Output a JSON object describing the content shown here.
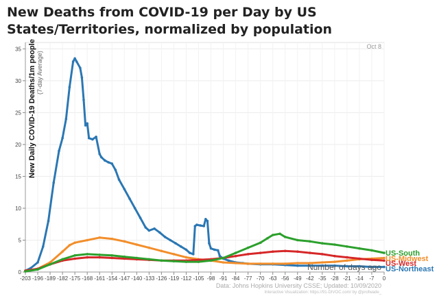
{
  "chart_data": {
    "type": "line",
    "title": "New Deaths from COVID-19 per Day by US States/Territories, normalized by population",
    "ylabel": "New Daily COVID-19 Deaths/1m people",
    "ylabel_sub": "(7-day Average)",
    "xlabel": "Number of days ago",
    "corner_label": "Oct 8",
    "source_line": "Data: Johns Hopkins University CSSE; Updated: 10/09/2020",
    "credit_line": "Interactive Visualization: https://91-DIVOC.com/ by @profwade_",
    "xlim": [
      -203,
      0
    ],
    "ylim": [
      0,
      36
    ],
    "x_ticks": [
      -203,
      -196,
      -189,
      -182,
      -175,
      -168,
      -161,
      -154,
      -147,
      -140,
      -133,
      -126,
      -119,
      -112,
      -105,
      -98,
      -91,
      -84,
      -77,
      -70,
      -63,
      -56,
      -49,
      -42,
      -35,
      -28,
      -21,
      -14,
      -7,
      0
    ],
    "y_ticks": [
      0,
      5,
      10,
      15,
      20,
      25,
      30,
      35
    ],
    "grid": true,
    "legend": "end-of-line labels, right",
    "series": [
      {
        "name": "US-Northeast",
        "color": "#2b77b3",
        "x": [
          -203,
          -200,
          -196,
          -193,
          -190,
          -187,
          -184,
          -182,
          -180,
          -178,
          -176,
          -175,
          -174,
          -172,
          -171,
          -170,
          -169,
          -168,
          -167,
          -165,
          -163,
          -161,
          -160,
          -158,
          -156,
          -154,
          -152,
          -150,
          -147,
          -144,
          -141,
          -138,
          -135,
          -133,
          -130,
          -127,
          -124,
          -121,
          -118,
          -115,
          -112,
          -110,
          -108,
          -107,
          -106,
          -104,
          -102,
          -101,
          -100,
          -99,
          -98,
          -96,
          -94,
          -93,
          -91,
          -88,
          -84,
          -80,
          -77,
          -70,
          -63,
          -56,
          -49,
          -42,
          -35,
          -28,
          -21,
          -14,
          -7,
          0
        ],
        "values": [
          0.2,
          0.6,
          1.5,
          4.0,
          8.0,
          14.0,
          19.0,
          21.0,
          24.0,
          29.0,
          33.0,
          33.5,
          33.0,
          32.0,
          30.5,
          27.0,
          23.0,
          23.3,
          21.0,
          20.8,
          21.2,
          18.5,
          18.0,
          17.5,
          17.2,
          17.0,
          16.0,
          14.5,
          13.0,
          11.5,
          10.0,
          8.5,
          7.0,
          6.5,
          6.8,
          6.2,
          5.5,
          5.0,
          4.5,
          4.0,
          3.5,
          3.0,
          2.8,
          7.2,
          7.4,
          7.3,
          7.2,
          8.3,
          8.0,
          4.5,
          3.7,
          3.5,
          3.4,
          2.5,
          2.1,
          1.8,
          1.5,
          1.4,
          1.3,
          1.2,
          1.2,
          1.1,
          1.0,
          1.0,
          1.0,
          1.0,
          0.9,
          0.9,
          0.8,
          0.8
        ]
      },
      {
        "name": "US-Midwest",
        "color": "#f28e2b",
        "x": [
          -203,
          -196,
          -189,
          -182,
          -178,
          -175,
          -168,
          -161,
          -154,
          -147,
          -140,
          -133,
          -126,
          -119,
          -112,
          -105,
          -98,
          -91,
          -84,
          -77,
          -70,
          -63,
          -56,
          -49,
          -42,
          -35,
          -28,
          -21,
          -14,
          -7,
          0
        ],
        "values": [
          0.2,
          0.5,
          1.5,
          3.2,
          4.2,
          4.6,
          5.0,
          5.4,
          5.2,
          4.8,
          4.3,
          3.8,
          3.3,
          2.8,
          2.3,
          2.0,
          1.8,
          1.5,
          1.4,
          1.3,
          1.3,
          1.3,
          1.3,
          1.4,
          1.4,
          1.5,
          1.6,
          1.8,
          2.0,
          2.1,
          2.2
        ]
      },
      {
        "name": "US-South",
        "color": "#2ca02c",
        "x": [
          -203,
          -196,
          -189,
          -182,
          -175,
          -168,
          -161,
          -154,
          -147,
          -140,
          -133,
          -126,
          -119,
          -112,
          -105,
          -98,
          -91,
          -84,
          -77,
          -70,
          -66,
          -63,
          -59,
          -56,
          -49,
          -42,
          -35,
          -28,
          -21,
          -14,
          -7,
          0
        ],
        "values": [
          0.1,
          0.4,
          1.2,
          2.0,
          2.6,
          2.8,
          2.7,
          2.6,
          2.4,
          2.2,
          2.0,
          1.8,
          1.7,
          1.6,
          1.6,
          1.8,
          2.2,
          3.0,
          3.8,
          4.6,
          5.3,
          5.8,
          6.0,
          5.5,
          5.0,
          4.8,
          4.5,
          4.3,
          4.0,
          3.7,
          3.4,
          3.0
        ]
      },
      {
        "name": "US-West",
        "color": "#d62728",
        "x": [
          -203,
          -196,
          -189,
          -182,
          -175,
          -168,
          -161,
          -154,
          -147,
          -140,
          -133,
          -126,
          -119,
          -112,
          -105,
          -98,
          -91,
          -84,
          -77,
          -70,
          -63,
          -56,
          -49,
          -42,
          -35,
          -28,
          -21,
          -14,
          -7,
          0
        ],
        "values": [
          0.2,
          0.5,
          1.2,
          1.8,
          2.1,
          2.3,
          2.3,
          2.2,
          2.1,
          2.0,
          1.9,
          1.8,
          1.8,
          1.8,
          1.9,
          2.0,
          2.2,
          2.5,
          2.8,
          3.0,
          3.2,
          3.3,
          3.2,
          3.0,
          2.8,
          2.5,
          2.3,
          2.1,
          1.9,
          1.8
        ]
      }
    ]
  }
}
